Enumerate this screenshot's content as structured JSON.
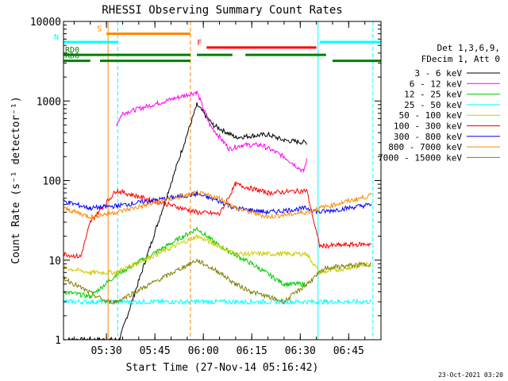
{
  "chart_data": {
    "type": "line",
    "title": "RHESSI Observing Summary Count Rates",
    "xlabel": "Start Time (27-Nov-14 05:16:42)",
    "ylabel": "Count Rate (s⁻¹ detector⁻¹)",
    "y_scale": "log",
    "ylim": [
      1,
      10000
    ],
    "xlim": [
      "05:16:42",
      "06:55:00"
    ],
    "x_ticks": [
      "05:30",
      "05:45",
      "06:00",
      "06:15",
      "06:30",
      "06:45"
    ],
    "y_ticks": [
      "1",
      "10",
      "100",
      "1000",
      "10000"
    ],
    "legend_header": [
      "Det 1,3,6,9,",
      "FDecim 1, Att 0"
    ],
    "legend_position": "right",
    "timestamp": "23-Oct-2021 03:20",
    "series": [
      {
        "name": "3 - 6 keV",
        "color": "#000000",
        "points": [
          [
            "05:16:42",
            1.0
          ],
          [
            "05:34:00",
            1.0
          ],
          [
            "05:58:00",
            900
          ],
          [
            "06:03:00",
            500
          ],
          [
            "06:10:00",
            350
          ],
          [
            "06:20:00",
            380
          ],
          [
            "06:25:00",
            320
          ],
          [
            "06:32:00",
            300
          ]
        ]
      },
      {
        "name": "6 - 12 keV",
        "color": "#ff00ff",
        "points": [
          [
            "05:33:00",
            500
          ],
          [
            "05:35:00",
            700
          ],
          [
            "05:58:00",
            1300
          ],
          [
            "06:02:00",
            500
          ],
          [
            "06:08:00",
            250
          ],
          [
            "06:12:00",
            280
          ],
          [
            "06:18:00",
            280
          ],
          [
            "06:25:00",
            200
          ],
          [
            "06:31:00",
            130
          ],
          [
            "06:32:00",
            180
          ]
        ]
      },
      {
        "name": "12 - 25 keV",
        "color": "#00cc00",
        "points": [
          [
            "05:16:42",
            4.0
          ],
          [
            "05:25:00",
            3.5
          ],
          [
            "05:33:00",
            6.5
          ],
          [
            "05:58:00",
            25
          ],
          [
            "06:05:00",
            15
          ],
          [
            "06:15:00",
            9
          ],
          [
            "06:25:00",
            5
          ],
          [
            "06:32:00",
            5
          ]
        ]
      },
      {
        "name": "25 - 50 keV",
        "color": "#00ffff",
        "points": [
          [
            "05:16:42",
            3.0
          ],
          [
            "05:30:00",
            3.0
          ],
          [
            "05:33:00",
            3.0
          ],
          [
            "05:58:00",
            3.0
          ],
          [
            "06:40:00",
            3.0
          ],
          [
            "06:52:00",
            3.0
          ]
        ]
      },
      {
        "name": "50 - 100 keV",
        "color": "#cccc00",
        "points": [
          [
            "05:16:42",
            8
          ],
          [
            "05:25:00",
            7
          ],
          [
            "05:33:00",
            7
          ],
          [
            "05:58:00",
            20
          ],
          [
            "06:05:00",
            15
          ],
          [
            "06:10:00",
            12
          ],
          [
            "06:20:00",
            12
          ],
          [
            "06:32:00",
            12
          ],
          [
            "06:36:00",
            7
          ],
          [
            "06:45:00",
            8
          ],
          [
            "06:52:00",
            9
          ]
        ]
      },
      {
        "name": "100 - 300 keV",
        "color": "#ff0000",
        "points": [
          [
            "05:16:42",
            12
          ],
          [
            "05:22:00",
            11
          ],
          [
            "05:25:00",
            30
          ],
          [
            "05:33:00",
            75
          ],
          [
            "05:58:00",
            40
          ],
          [
            "06:05:00",
            38
          ],
          [
            "06:10:00",
            90
          ],
          [
            "06:20:00",
            70
          ],
          [
            "06:32:00",
            75
          ],
          [
            "06:36:00",
            15
          ],
          [
            "06:52:00",
            16
          ]
        ]
      },
      {
        "name": "300 - 800 keV",
        "color": "#0000ff",
        "points": [
          [
            "05:16:42",
            55
          ],
          [
            "05:25:00",
            45
          ],
          [
            "05:33:00",
            48
          ],
          [
            "05:58:00",
            68
          ],
          [
            "06:05:00",
            55
          ],
          [
            "06:10:00",
            45
          ],
          [
            "06:20:00",
            40
          ],
          [
            "06:32:00",
            45
          ],
          [
            "06:36:00",
            40
          ],
          [
            "06:52:00",
            50
          ]
        ]
      },
      {
        "name": "800 - 7000 keV",
        "color": "#ff8800",
        "points": [
          [
            "05:16:42",
            45
          ],
          [
            "05:25:00",
            35
          ],
          [
            "05:33:00",
            40
          ],
          [
            "05:58:00",
            70
          ],
          [
            "06:05:00",
            60
          ],
          [
            "06:10:00",
            45
          ],
          [
            "06:20:00",
            35
          ],
          [
            "06:32:00",
            40
          ],
          [
            "06:36:00",
            45
          ],
          [
            "06:52:00",
            65
          ]
        ]
      },
      {
        "name": "7000 - 15000 keV",
        "color": "#808000",
        "points": [
          [
            "05:16:42",
            6
          ],
          [
            "05:20:00",
            5
          ],
          [
            "05:30:00",
            3
          ],
          [
            "05:33:00",
            3
          ],
          [
            "05:58:00",
            10
          ],
          [
            "06:05:00",
            7
          ],
          [
            "06:10:00",
            5
          ],
          [
            "06:15:00",
            4
          ],
          [
            "06:25:00",
            3
          ],
          [
            "06:32:00",
            5
          ],
          [
            "06:38:00",
            8
          ],
          [
            "06:52:00",
            9
          ]
        ]
      }
    ],
    "flags": [
      {
        "label": "S",
        "color": "#ff8800",
        "start": "05:30:00",
        "end": "05:56:00",
        "level": 7000
      },
      {
        "label": "N",
        "color": "#00ffff",
        "start": "05:16:42",
        "end": "05:33:30",
        "level": 5500
      },
      {
        "label": "N",
        "color": "#00ffff",
        "start": "06:36:00",
        "end": "06:55:00",
        "level": 5500
      },
      {
        "label": "F",
        "color": "#ff0000",
        "start": "06:01:00",
        "end": "06:35:00",
        "level": 4700
      },
      {
        "label": "RD0",
        "color": "#008000",
        "start": "05:16:42",
        "end": "05:56:00",
        "level": 3800
      },
      {
        "label": "RD0",
        "color": "#008000",
        "start": "05:58:00",
        "end": "06:09:00",
        "level": 3800
      },
      {
        "label": "RD0",
        "color": "#008000",
        "start": "06:13:00",
        "end": "06:38:00",
        "level": 3800
      },
      {
        "label": "RD6",
        "color": "#008000",
        "start": "05:16:42",
        "end": "05:25:00",
        "level": 3200
      },
      {
        "label": "RD6",
        "color": "#008000",
        "start": "05:28:00",
        "end": "05:56:00",
        "level": 3200
      },
      {
        "label": "RD6",
        "color": "#008000",
        "start": "06:40:00",
        "end": "06:55:00",
        "level": 3200
      }
    ],
    "vlines": [
      {
        "time": "05:16:42",
        "color": "#00ffff",
        "style": "solid"
      },
      {
        "time": "05:30:30",
        "color": "#ff8800",
        "style": "solid"
      },
      {
        "time": "05:33:30",
        "color": "#00ffff",
        "style": "dashed"
      },
      {
        "time": "05:56:00",
        "color": "#ff8800",
        "style": "dashed"
      },
      {
        "time": "06:35:30",
        "color": "#00ffff",
        "style": "solid"
      },
      {
        "time": "06:52:30",
        "color": "#00ffff",
        "style": "dashed"
      }
    ]
  }
}
